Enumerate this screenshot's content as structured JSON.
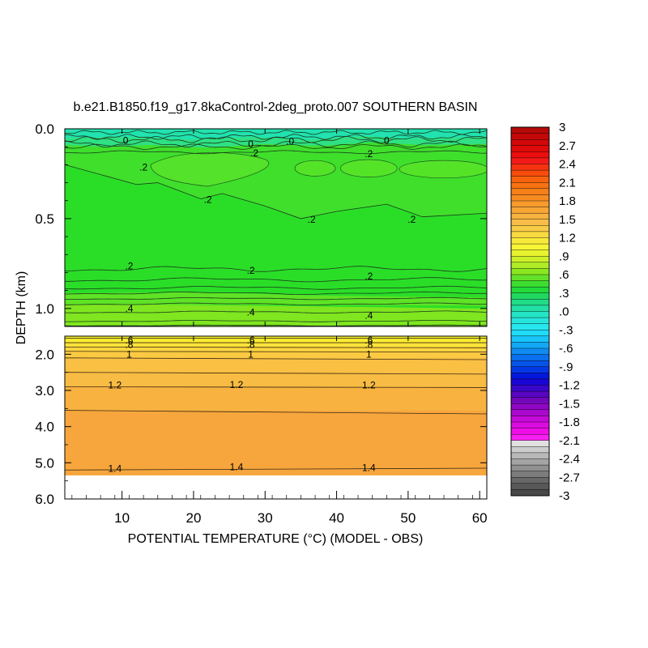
{
  "chart_data": {
    "type": "contour",
    "title": "b.e21.B1850.f19_g17.8kaControl-2deg_proto.007 SOUTHERN BASIN",
    "xlabel": "POTENTIAL TEMPERATURE (°C) (MODEL - OBS)",
    "ylabel": "DEPTH (km)",
    "x_range": [
      2,
      61
    ],
    "x_ticks": [
      "10",
      "20",
      "30",
      "40",
      "50",
      "60"
    ],
    "upper_panel": {
      "depth_range": [
        0.0,
        1.1
      ],
      "y_ticks": [
        "0.0",
        "0.5",
        "1.0"
      ]
    },
    "lower_panel": {
      "depth_range": [
        1.5,
        6.0
      ],
      "y_ticks": [
        "2.0",
        "3.0",
        "4.0",
        "5.0",
        "6.0"
      ]
    },
    "bottom_depth": 5.35,
    "contour_interval": 0.1,
    "contour_labels": [
      {
        "text": "0",
        "x": 10.5,
        "depth": 0.065
      },
      {
        "text": "0",
        "x": 28,
        "depth": 0.085
      },
      {
        "text": ".0",
        "x": 33.5,
        "depth": 0.07
      },
      {
        "text": "0",
        "x": 47,
        "depth": 0.065
      },
      {
        "text": ".2",
        "x": 28.5,
        "depth": 0.135
      },
      {
        "text": ".2",
        "x": 44.5,
        "depth": 0.14
      },
      {
        "text": ".2",
        "x": 13,
        "depth": 0.215
      },
      {
        "text": ".2",
        "x": 22,
        "depth": 0.395
      },
      {
        "text": ".2",
        "x": 36.5,
        "depth": 0.505
      },
      {
        "text": ".2",
        "x": 50.5,
        "depth": 0.505
      },
      {
        "text": ".2",
        "x": 11,
        "depth": 0.765
      },
      {
        "text": ".2",
        "x": 28,
        "depth": 0.79
      },
      {
        "text": ".2",
        "x": 44.5,
        "depth": 0.82
      },
      {
        "text": ".4",
        "x": 11,
        "depth": 1.0
      },
      {
        "text": ".4",
        "x": 28,
        "depth": 1.02
      },
      {
        "text": ".4",
        "x": 44.5,
        "depth": 1.04
      },
      {
        "text": ".6",
        "x": 11,
        "depth": 1.61
      },
      {
        "text": ".6",
        "x": 28,
        "depth": 1.61
      },
      {
        "text": ".6",
        "x": 44.5,
        "depth": 1.61
      },
      {
        "text": ".8",
        "x": 11,
        "depth": 1.74
      },
      {
        "text": ".8",
        "x": 28,
        "depth": 1.74
      },
      {
        "text": ".8",
        "x": 44.5,
        "depth": 1.74
      },
      {
        "text": "1",
        "x": 11,
        "depth": 2.0
      },
      {
        "text": "1",
        "x": 28,
        "depth": 2.0
      },
      {
        "text": "1",
        "x": 44.5,
        "depth": 2.0
      },
      {
        "text": "1.2",
        "x": 9,
        "depth": 2.86
      },
      {
        "text": "1.2",
        "x": 26,
        "depth": 2.84
      },
      {
        "text": "1.2",
        "x": 44.5,
        "depth": 2.86
      },
      {
        "text": "1.4",
        "x": 9,
        "depth": 5.16
      },
      {
        "text": "1.4",
        "x": 26,
        "depth": 5.12
      },
      {
        "text": "1.4",
        "x": 44.5,
        "depth": 5.14
      }
    ],
    "colorbar": {
      "range": [
        -3,
        3
      ],
      "labels": [
        "3",
        "2.7",
        "2.4",
        "2.1",
        "1.8",
        "1.5",
        "1.2",
        ".9",
        ".6",
        ".3",
        ".0",
        "-.3",
        "-.6",
        "-.9",
        "-1.2",
        "-1.5",
        "-1.8",
        "-2.1",
        "-2.4",
        "-2.7",
        "-3"
      ]
    },
    "colors": {
      "upper_band_cyan": "#21e2b0",
      "upper_band_green": "#22e032",
      "deep_green": "#2ade28",
      "lime": "#8ce81e",
      "yellow": "#f8f233",
      "light_orange": "#f8bc44",
      "orange": "#f7a63d"
    }
  }
}
